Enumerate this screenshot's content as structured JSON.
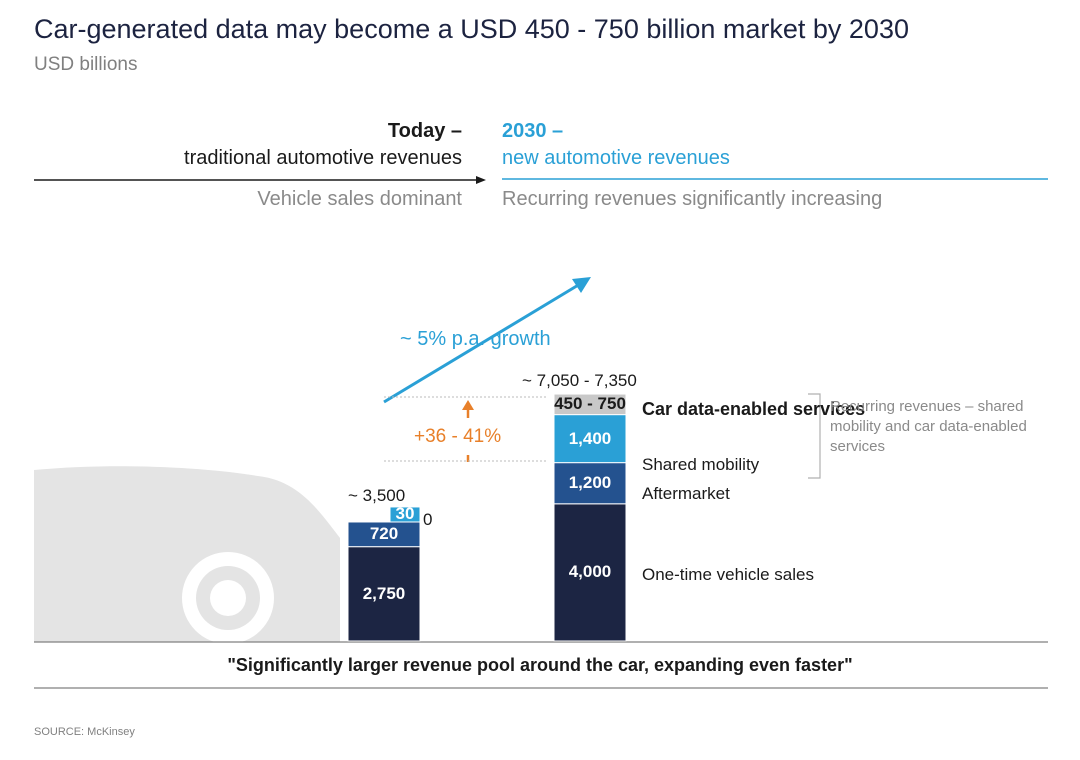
{
  "header": {
    "title": "Car-generated data may become a USD 450 - 750 billion market by 2030",
    "subtitle": "USD billions"
  },
  "timeline": {
    "today_heading": "Today –",
    "today_sub": "traditional automotive revenues",
    "today_desc": "Vehicle sales dominant",
    "future_heading": "2030 –",
    "future_sub": "new automotive revenues",
    "future_desc": "Recurring revenues significantly increasing"
  },
  "annotations": {
    "growth": "~ 5% p.a. growth",
    "increase": "+36 - 41%",
    "recurring": "Recurring revenues – shared mobility and car data-enabled services"
  },
  "colors": {
    "navy": "#1c2543",
    "mid_blue": "#24528f",
    "light_blue": "#2aa0d6",
    "gray_box": "#c8c8c8",
    "orange": "#e8802a",
    "car": "#e4e4e4"
  },
  "chart_data": {
    "type": "bar",
    "stacked": true,
    "categories": [
      "Today",
      "2030"
    ],
    "totals": [
      "~ 3,500",
      "~ 7,050 - 7,350"
    ],
    "series": [
      {
        "name": "One-time vehicle sales",
        "values": [
          2750,
          4000
        ],
        "labels": [
          "2,750",
          "4,000"
        ]
      },
      {
        "name": "Aftermarket",
        "values": [
          720,
          1200
        ],
        "labels": [
          "720",
          "1,200"
        ]
      },
      {
        "name": "Shared mobility",
        "values": [
          30,
          1400
        ],
        "labels": [
          "30",
          "1,400"
        ]
      },
      {
        "name": "Car data-enabled services",
        "values": [
          0,
          600
        ],
        "labels": [
          "0",
          "450 - 750"
        ]
      }
    ]
  },
  "footer": {
    "quote": "\"Significantly larger revenue pool around the car, expanding even faster\"",
    "source": "SOURCE: McKinsey"
  }
}
